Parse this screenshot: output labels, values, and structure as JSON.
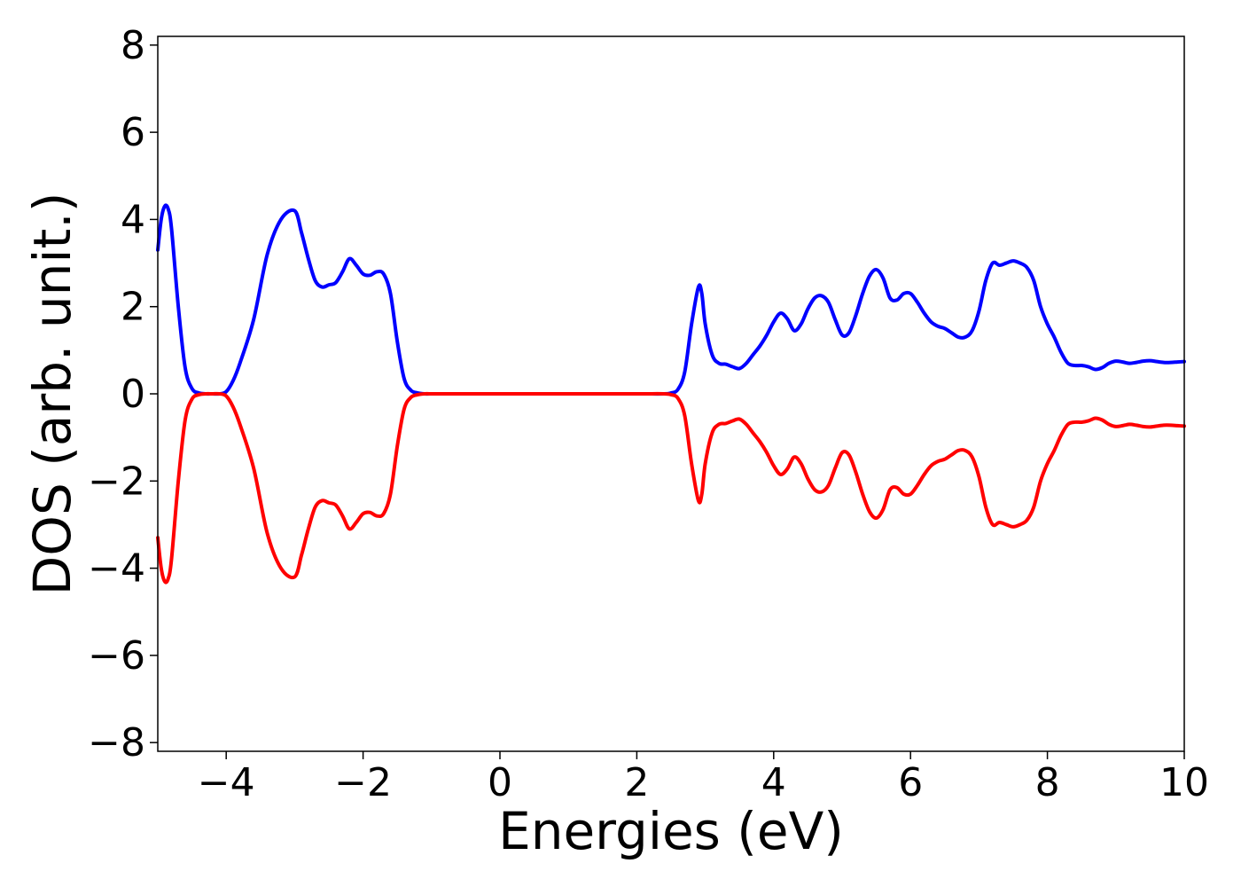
{
  "chart_data": {
    "type": "line",
    "title": "",
    "xlabel": "Energies (eV)",
    "ylabel": "DOS (arb. unit.)",
    "xlim": [
      -5,
      10
    ],
    "ylim": [
      -8.2,
      8.2
    ],
    "xticks": [
      -4,
      -2,
      0,
      2,
      4,
      6,
      8,
      10
    ],
    "xtick_labels": [
      "−4",
      "−2",
      "0",
      "2",
      "4",
      "6",
      "8",
      "10"
    ],
    "yticks": [
      -8,
      -6,
      -4,
      -2,
      0,
      2,
      4,
      6,
      8
    ],
    "ytick_labels": [
      "−8",
      "−6",
      "−4",
      "−2",
      "0",
      "2",
      "4",
      "6",
      "8"
    ],
    "grid": false,
    "series": [
      {
        "color": "#0000ff",
        "x": [
          -5.0,
          -4.95,
          -4.9,
          -4.85,
          -4.8,
          -4.7,
          -4.6,
          -4.5,
          -4.4,
          -4.3,
          -4.2,
          -4.1,
          -4.0,
          -3.9,
          -3.8,
          -3.6,
          -3.4,
          -3.2,
          -3.0,
          -2.9,
          -2.8,
          -2.7,
          -2.6,
          -2.5,
          -2.4,
          -2.3,
          -2.2,
          -2.1,
          -2.0,
          -1.9,
          -1.8,
          -1.7,
          -1.6,
          -1.5,
          -1.4,
          -1.3,
          -1.2,
          -1.1,
          -1.0,
          -0.9,
          -0.8,
          -0.7,
          -0.6,
          -0.5,
          -0.3,
          0.0,
          1.0,
          2.0,
          2.4,
          2.5,
          2.6,
          2.7,
          2.8,
          2.9,
          2.95,
          3.0,
          3.1,
          3.2,
          3.3,
          3.4,
          3.5,
          3.6,
          3.7,
          3.8,
          3.9,
          4.0,
          4.1,
          4.2,
          4.3,
          4.4,
          4.5,
          4.6,
          4.7,
          4.8,
          4.9,
          5.0,
          5.1,
          5.2,
          5.3,
          5.4,
          5.5,
          5.6,
          5.7,
          5.8,
          5.9,
          6.0,
          6.1,
          6.2,
          6.3,
          6.4,
          6.5,
          6.6,
          6.7,
          6.8,
          6.9,
          7.0,
          7.1,
          7.2,
          7.3,
          7.4,
          7.5,
          7.6,
          7.7,
          7.8,
          7.9,
          8.0,
          8.1,
          8.2,
          8.3,
          8.4,
          8.5,
          8.6,
          8.7,
          8.8,
          8.9,
          9.0,
          9.1,
          9.2,
          9.3,
          9.4,
          9.5,
          9.6,
          9.7,
          9.8,
          9.9,
          10.0
        ],
        "y": [
          3.3,
          4.0,
          4.3,
          4.25,
          3.8,
          2.0,
          0.6,
          0.12,
          0.02,
          0.0,
          0.0,
          0.0,
          0.05,
          0.3,
          0.7,
          1.7,
          3.2,
          4.0,
          4.2,
          3.7,
          3.1,
          2.6,
          2.45,
          2.5,
          2.55,
          2.8,
          3.1,
          2.95,
          2.75,
          2.72,
          2.8,
          2.75,
          2.3,
          1.2,
          0.35,
          0.08,
          0.02,
          0.0,
          0.0,
          0.0,
          0.0,
          0.0,
          0.0,
          0.0,
          0.0,
          0.0,
          0.0,
          0.0,
          0.0,
          0.02,
          0.1,
          0.5,
          1.6,
          2.45,
          2.3,
          1.6,
          0.9,
          0.7,
          0.68,
          0.62,
          0.58,
          0.7,
          0.9,
          1.1,
          1.35,
          1.65,
          1.85,
          1.72,
          1.45,
          1.6,
          1.95,
          2.2,
          2.25,
          2.1,
          1.7,
          1.35,
          1.4,
          1.8,
          2.3,
          2.7,
          2.85,
          2.65,
          2.2,
          2.15,
          2.3,
          2.3,
          2.1,
          1.85,
          1.65,
          1.55,
          1.5,
          1.4,
          1.3,
          1.3,
          1.45,
          1.9,
          2.6,
          3.0,
          2.95,
          3.0,
          3.05,
          3.0,
          2.9,
          2.6,
          2.0,
          1.6,
          1.3,
          0.95,
          0.7,
          0.65,
          0.65,
          0.62,
          0.56,
          0.6,
          0.7,
          0.75,
          0.73,
          0.7,
          0.72,
          0.75,
          0.76,
          0.74,
          0.72,
          0.72,
          0.73,
          0.74
        ]
      },
      {
        "color": "#ff0000",
        "x": [
          -5.0,
          -4.95,
          -4.9,
          -4.85,
          -4.8,
          -4.7,
          -4.6,
          -4.5,
          -4.4,
          -4.3,
          -4.2,
          -4.1,
          -4.0,
          -3.9,
          -3.8,
          -3.6,
          -3.4,
          -3.2,
          -3.0,
          -2.9,
          -2.8,
          -2.7,
          -2.6,
          -2.5,
          -2.4,
          -2.3,
          -2.2,
          -2.1,
          -2.0,
          -1.9,
          -1.8,
          -1.7,
          -1.6,
          -1.5,
          -1.4,
          -1.3,
          -1.2,
          -1.1,
          -1.0,
          -0.9,
          -0.8,
          -0.7,
          -0.6,
          -0.5,
          -0.3,
          0.0,
          1.0,
          2.0,
          2.4,
          2.5,
          2.6,
          2.7,
          2.8,
          2.9,
          2.95,
          3.0,
          3.1,
          3.2,
          3.3,
          3.4,
          3.5,
          3.6,
          3.7,
          3.8,
          3.9,
          4.0,
          4.1,
          4.2,
          4.3,
          4.4,
          4.5,
          4.6,
          4.7,
          4.8,
          4.9,
          5.0,
          5.1,
          5.2,
          5.3,
          5.4,
          5.5,
          5.6,
          5.7,
          5.8,
          5.9,
          6.0,
          6.1,
          6.2,
          6.3,
          6.4,
          6.5,
          6.6,
          6.7,
          6.8,
          6.9,
          7.0,
          7.1,
          7.2,
          7.3,
          7.4,
          7.5,
          7.6,
          7.7,
          7.8,
          7.9,
          8.0,
          8.1,
          8.2,
          8.3,
          8.4,
          8.5,
          8.6,
          8.7,
          8.8,
          8.9,
          9.0,
          9.1,
          9.2,
          9.3,
          9.4,
          9.5,
          9.6,
          9.7,
          9.8,
          9.9,
          10.0
        ],
        "y": [
          -3.3,
          -4.0,
          -4.3,
          -4.25,
          -3.8,
          -2.0,
          -0.6,
          -0.12,
          -0.02,
          0.0,
          0.0,
          0.0,
          -0.05,
          -0.3,
          -0.7,
          -1.7,
          -3.2,
          -4.0,
          -4.2,
          -3.7,
          -3.1,
          -2.6,
          -2.45,
          -2.5,
          -2.55,
          -2.8,
          -3.1,
          -2.95,
          -2.75,
          -2.72,
          -2.8,
          -2.75,
          -2.3,
          -1.2,
          -0.35,
          -0.08,
          -0.02,
          0.0,
          0.0,
          0.0,
          0.0,
          0.0,
          0.0,
          0.0,
          0.0,
          0.0,
          0.0,
          0.0,
          0.0,
          -0.02,
          -0.1,
          -0.5,
          -1.6,
          -2.45,
          -2.3,
          -1.6,
          -0.9,
          -0.7,
          -0.68,
          -0.62,
          -0.58,
          -0.7,
          -0.9,
          -1.1,
          -1.35,
          -1.65,
          -1.85,
          -1.72,
          -1.45,
          -1.6,
          -1.95,
          -2.2,
          -2.25,
          -2.1,
          -1.7,
          -1.35,
          -1.4,
          -1.8,
          -2.3,
          -2.7,
          -2.85,
          -2.65,
          -2.2,
          -2.15,
          -2.3,
          -2.3,
          -2.1,
          -1.85,
          -1.65,
          -1.55,
          -1.5,
          -1.4,
          -1.3,
          -1.3,
          -1.45,
          -1.9,
          -2.6,
          -3.0,
          -2.95,
          -3.0,
          -3.05,
          -3.0,
          -2.9,
          -2.6,
          -2.0,
          -1.6,
          -1.3,
          -0.95,
          -0.7,
          -0.65,
          -0.65,
          -0.62,
          -0.56,
          -0.6,
          -0.7,
          -0.75,
          -0.73,
          -0.7,
          -0.72,
          -0.75,
          -0.76,
          -0.74,
          -0.72,
          -0.72,
          -0.73,
          -0.74
        ]
      }
    ]
  }
}
